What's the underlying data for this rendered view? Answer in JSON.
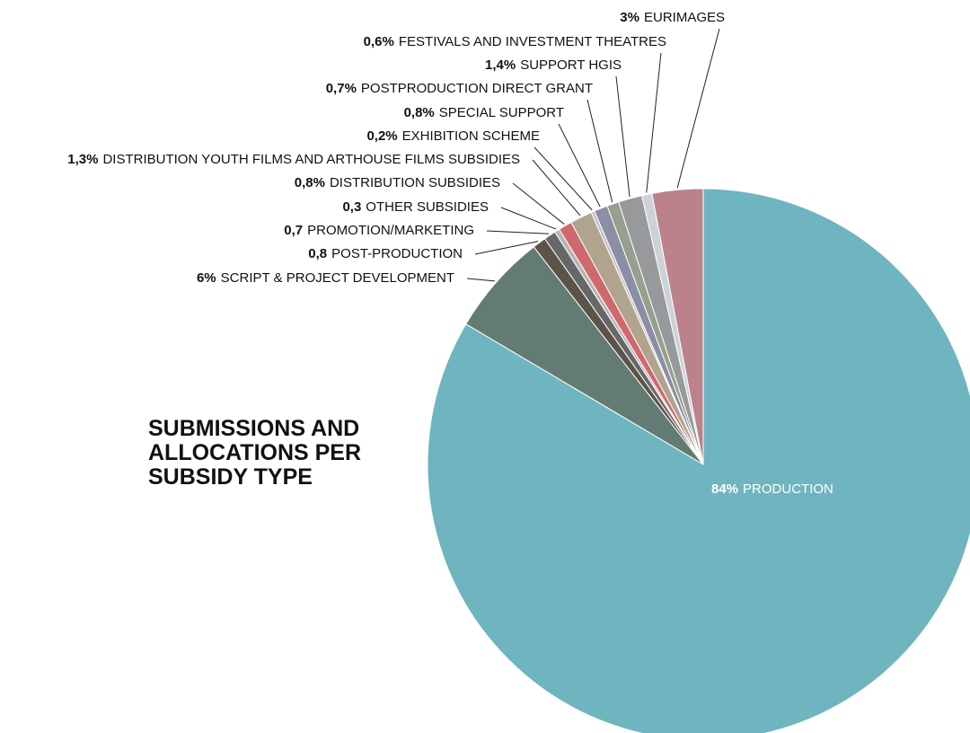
{
  "chart_data": {
    "type": "pie",
    "title": "SUBMISSIONS AND ALLOCATIONS PER SUBSIDY TYPE",
    "categories": [
      "PRODUCTION",
      "SCRIPT & PROJECT DEVELOPMENT",
      "POST-PRODUCTION",
      "PROMOTION/MARKETING",
      "OTHER SUBSIDIES",
      "DISTRIBUTION SUBSIDIES",
      "DISTRIBUTION YOUTH FILMS AND ARTHOUSE FILMS SUBSIDIES",
      "EXHIBITION SCHEME",
      "SPECIAL SUPPORT",
      "POSTPRODUCTION DIRECT GRANT",
      "SUPPORT HGIS",
      "FESTIVALS AND INVESTMENT THEATRES",
      "EURIMAGES"
    ],
    "values": [
      84,
      6,
      0.8,
      0.7,
      0.3,
      0.8,
      1.3,
      0.2,
      0.8,
      0.7,
      1.4,
      0.6,
      3
    ],
    "value_labels": [
      "84%",
      "6%",
      "0,8",
      "0,7",
      "0,3",
      "0,8%",
      "1,3%",
      "0,2%",
      "0,8%",
      "0,7%",
      "1,4%",
      "0,6%",
      "3%"
    ],
    "colors": [
      "#6fb5c0",
      "#627c74",
      "#5c5449",
      "#676767",
      "#b5b5b5",
      "#d0696e",
      "#b0a48c",
      "#c7bfc2",
      "#8a8fa6",
      "#95a08d",
      "#98999b",
      "#ccd2d8",
      "#bc828b"
    ]
  }
}
